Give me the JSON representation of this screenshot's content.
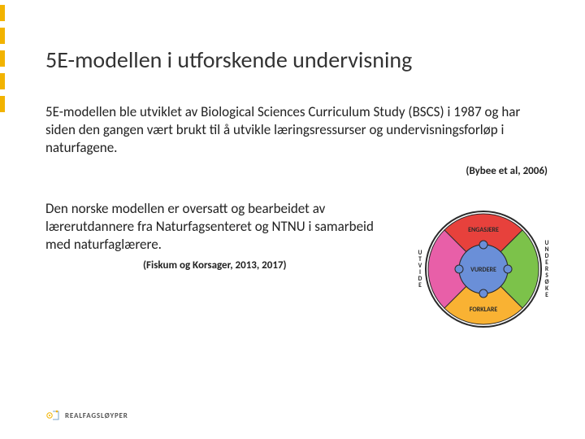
{
  "accent": {
    "dash_color": "#f2b300",
    "dash_count": 5
  },
  "title": "5E-modellen i utforskende undervisning",
  "paragraph1": "5E-modellen ble utviklet av Biological Sciences Curriculum Study (BSCS) i 1987 og har siden den gangen vært brukt til å utvikle læringsressurser og undervisningsforløp i naturfagene.",
  "citation1": "(Bybee et al, 2006)",
  "paragraph2": "Den norske modellen er oversatt og bearbeidet av lærerutdannere fra Naturfagsenteret og NTNU i samarbeid med naturfaglærere.",
  "citation2": "(Fiskum og Korsager, 2013, 2017)",
  "diagram": {
    "type": "radial-segmented-circle",
    "outer_ring_color": "#2a2a2a",
    "outer_ring_width": 2,
    "center": {
      "label": "VURDERE",
      "fill": "#6a8fd8",
      "puzzle_knob_color": "#6a8fd8"
    },
    "segments": [
      {
        "label": "ENGASJERE",
        "fill": "#e7413c",
        "angle_start": -45,
        "angle_end": 45,
        "label_pos": "top"
      },
      {
        "label": "UNDERSØKE",
        "fill": "#7cc24a",
        "angle_start": 45,
        "angle_end": 135,
        "label_pos": "right",
        "vertical": true
      },
      {
        "label": "FORKLARE",
        "fill": "#f9b233",
        "angle_start": 135,
        "angle_end": 225,
        "label_pos": "bottom"
      },
      {
        "label": "UTVIDE",
        "fill": "#e85fa8",
        "angle_start": 225,
        "angle_end": 315,
        "label_pos": "left",
        "vertical": true
      }
    ],
    "background": "#ffffff"
  },
  "footer": {
    "logo_text": "REALFAGSLØYPER",
    "logo_accent": "#f2b300",
    "logo_secondary": "#7aa6c9"
  }
}
